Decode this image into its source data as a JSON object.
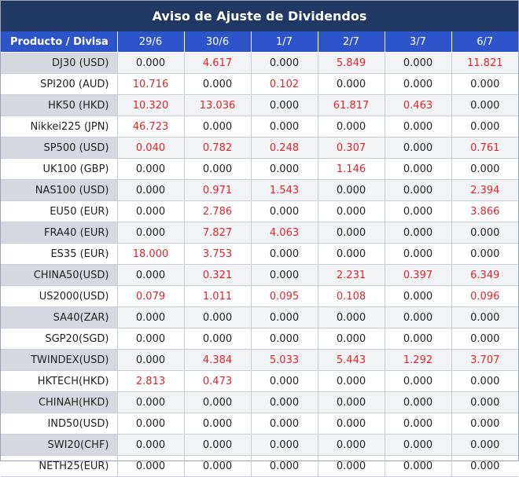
{
  "title": "Aviso de Ajuste de Dividendos",
  "colors": {
    "header_bg": "#1f3864",
    "col_header_bg": "#2e54c9",
    "nonzero_text": "#e0242b",
    "zero_text": "#222222"
  },
  "table": {
    "headers": [
      "Producto / Divisa",
      "29/6",
      "30/6",
      "1/7",
      "2/7",
      "3/7",
      "6/7"
    ],
    "rows": [
      {
        "name": "DJ30 (USD)",
        "values": [
          "0.000",
          "4.617",
          "0.000",
          "5.849",
          "0.000",
          "11.821"
        ]
      },
      {
        "name": "SPI200 (AUD)",
        "values": [
          "10.716",
          "0.000",
          "0.102",
          "0.000",
          "0.000",
          "0.000"
        ]
      },
      {
        "name": "HK50 (HKD)",
        "values": [
          "10.320",
          "13.036",
          "0.000",
          "61.817",
          "0.463",
          "0.000"
        ]
      },
      {
        "name": "Nikkei225 (JPN)",
        "values": [
          "46.723",
          "0.000",
          "0.000",
          "0.000",
          "0.000",
          "0.000"
        ]
      },
      {
        "name": "SP500 (USD)",
        "values": [
          "0.040",
          "0.782",
          "0.248",
          "0.307",
          "0.000",
          "0.761"
        ]
      },
      {
        "name": "UK100 (GBP)",
        "values": [
          "0.000",
          "0.000",
          "0.000",
          "1.146",
          "0.000",
          "0.000"
        ]
      },
      {
        "name": "NAS100 (USD)",
        "values": [
          "0.000",
          "0.971",
          "1.543",
          "0.000",
          "0.000",
          "2.394"
        ]
      },
      {
        "name": "EU50 (EUR)",
        "values": [
          "0.000",
          "2.786",
          "0.000",
          "0.000",
          "0.000",
          "3.866"
        ]
      },
      {
        "name": "FRA40 (EUR)",
        "values": [
          "0.000",
          "7.827",
          "4.063",
          "0.000",
          "0.000",
          "0.000"
        ]
      },
      {
        "name": "ES35 (EUR)",
        "values": [
          "18.000",
          "3.753",
          "0.000",
          "0.000",
          "0.000",
          "0.000"
        ]
      },
      {
        "name": "CHINA50(USD)",
        "values": [
          "0.000",
          "0.321",
          "0.000",
          "2.231",
          "0.397",
          "6.349"
        ]
      },
      {
        "name": "US2000(USD)",
        "values": [
          "0.079",
          "1.011",
          "0.095",
          "0.108",
          "0.000",
          "0.096"
        ]
      },
      {
        "name": "SA40(ZAR)",
        "values": [
          "0.000",
          "0.000",
          "0.000",
          "0.000",
          "0.000",
          "0.000"
        ]
      },
      {
        "name": "SGP20(SGD)",
        "values": [
          "0.000",
          "0.000",
          "0.000",
          "0.000",
          "0.000",
          "0.000"
        ]
      },
      {
        "name": "TWINDEX(USD)",
        "values": [
          "0.000",
          "4.384",
          "5.033",
          "5.443",
          "1.292",
          "3.707"
        ]
      },
      {
        "name": "HKTECH(HKD)",
        "values": [
          "2.813",
          "0.473",
          "0.000",
          "0.000",
          "0.000",
          "0.000"
        ]
      },
      {
        "name": "CHINAH(HKD)",
        "values": [
          "0.000",
          "0.000",
          "0.000",
          "0.000",
          "0.000",
          "0.000"
        ]
      },
      {
        "name": "IND50(USD)",
        "values": [
          "0.000",
          "0.000",
          "0.000",
          "0.000",
          "0.000",
          "0.000"
        ]
      },
      {
        "name": "SWI20(CHF)",
        "values": [
          "0.000",
          "0.000",
          "0.000",
          "0.000",
          "0.000",
          "0.000"
        ]
      },
      {
        "name": "NETH25(EUR)",
        "values": [
          "0.000",
          "0.000",
          "0.000",
          "0.000",
          "0.000",
          "0.000"
        ]
      }
    ]
  }
}
